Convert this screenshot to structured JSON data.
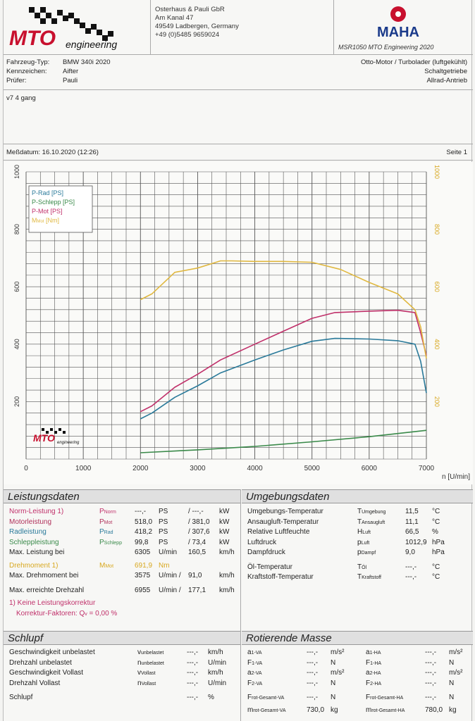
{
  "header": {
    "logo_text": "MTO",
    "logo_sub": "engineering",
    "address": [
      "Osterhaus & Pauli GbR",
      "Am Kanal 47",
      "49549 Ladbergen, Germany",
      "+49 (0)5485 9659024"
    ],
    "maha_text": "MAHA",
    "msr": "MSR1050   MTO Engineering 2020"
  },
  "vehicle": {
    "type_label": "Fahrzeug-Typ:",
    "type": "BMW 340i 2020",
    "plate_label": "Kennzeichen:",
    "plate": "Aifter",
    "tester_label": "Prüfer:",
    "tester": "Pauli",
    "engine": "Otto-Motor / Turbolader (luftgekühlt)",
    "gearbox": "Schaltgetriebe",
    "drive": "Allrad-Antrieb"
  },
  "note": "v7 4 gang",
  "measure": {
    "date": "Meßdatum: 16.10.2020 (12:26)",
    "page": "Seite 1"
  },
  "chart_data": {
    "type": "line",
    "xlabel": "n [U/min]",
    "x_ticks": [
      "0",
      "1000",
      "2000",
      "3000",
      "4000",
      "5000",
      "6000",
      "7000"
    ],
    "y_left_ticks": [
      "200",
      "400",
      "600",
      "800",
      "1000"
    ],
    "y_right_ticks": [
      "200",
      "400",
      "600",
      "800",
      "1000"
    ],
    "xlim": [
      0,
      7000
    ],
    "ylim": [
      0,
      1000
    ],
    "grid": true,
    "legend_position": "top-left",
    "legend": [
      {
        "label": "P-Rad [PS]",
        "color": "#2a7a9a"
      },
      {
        "label": "P-Schlepp [PS]",
        "color": "#3a8a4a"
      },
      {
        "label": "P-Mot [PS]",
        "color": "#c0306a"
      },
      {
        "label": "M",
        "sub": "Mot",
        "unit": "[Nm]",
        "color": "#e0b840"
      }
    ],
    "series": [
      {
        "name": "P-Rad [PS]",
        "color": "#2a7a9a",
        "x": [
          2000,
          2200,
          2600,
          3000,
          3400,
          4000,
          4500,
          5000,
          5400,
          6000,
          6500,
          6800,
          6900,
          7000
        ],
        "y": [
          140,
          160,
          215,
          255,
          300,
          345,
          380,
          410,
          420,
          418,
          412,
          400,
          340,
          230
        ]
      },
      {
        "name": "P-Schlepp [PS]",
        "color": "#3a8a4a",
        "x": [
          2000,
          3000,
          4000,
          5000,
          6000,
          7000
        ],
        "y": [
          22,
          32,
          44,
          60,
          78,
          100
        ]
      },
      {
        "name": "P-Mot [PS]",
        "color": "#c0306a",
        "x": [
          2000,
          2200,
          2600,
          3000,
          3400,
          4000,
          4500,
          5000,
          5400,
          6000,
          6500,
          6800,
          6900,
          7000
        ],
        "y": [
          165,
          185,
          250,
          295,
          345,
          400,
          445,
          490,
          510,
          515,
          518,
          510,
          440,
          360
        ]
      },
      {
        "name": "M [Nm]",
        "color": "#e0b840",
        "x": [
          2000,
          2200,
          2600,
          3000,
          3400,
          3600,
          4000,
          4500,
          5000,
          5500,
          6000,
          6500,
          6800,
          6900,
          7000
        ],
        "y": [
          555,
          575,
          650,
          665,
          690,
          690,
          688,
          688,
          685,
          660,
          615,
          575,
          520,
          460,
          350
        ]
      }
    ]
  },
  "leistung": {
    "title": "Leistungsdaten",
    "rows": [
      {
        "label": "Norm-Leistung",
        "sup": "1)",
        "sym": "P",
        "sub": "Norm",
        "v1": "---,-",
        "u1": "PS",
        "v2": "---,-",
        "u2": "kW"
      },
      {
        "label": "Motorleistung",
        "sym": "P",
        "sub": "Mot",
        "v1": "518,0",
        "u1": "PS",
        "v2": "381,0",
        "u2": "kW"
      },
      {
        "label": "Radleistung",
        "sym": "P",
        "sub": "Rad",
        "v1": "418,2",
        "u1": "PS",
        "v2": "307,6",
        "u2": "kW"
      },
      {
        "label": "Schleppleistung",
        "sym": "P",
        "sub": "Schlepp",
        "v1": "99,8",
        "u1": "PS",
        "v2": "73,4",
        "u2": "kW"
      },
      {
        "label": "Max. Leistung bei",
        "v1": "6305",
        "u1": "U/min",
        "v2": "160,5",
        "u2": "km/h"
      }
    ],
    "drehmoment": {
      "label": "Drehmoment",
      "sup": "1)",
      "sym": "M",
      "sub": "Mot",
      "v": "691,9",
      "u": "Nm"
    },
    "max_dreh": {
      "label": "Max. Drehmoment bei",
      "v1": "3575",
      "u1": "U/min",
      "v2": "91,0",
      "u2": "km/h"
    },
    "max_drehzahl": {
      "label": "Max. erreichte Drehzahl",
      "v1": "6955",
      "u1": "U/min",
      "v2": "177,1",
      "u2": "km/h"
    },
    "korr1": "1) Keine Leistungskorrektur",
    "korr2": "Korrektur-Faktoren: Q",
    "korr2_sub": "v",
    "korr2_val": "=   0,00 %"
  },
  "umgebung": {
    "title": "Umgebungsdaten",
    "rows": [
      {
        "label": "Umgebungs-Temperatur",
        "sym": "T",
        "sub": "Umgebung",
        "v": "11,5",
        "u": "°C"
      },
      {
        "label": "Ansaugluft-Temperatur",
        "sym": "T",
        "sub": "Ansaugluft",
        "v": "11,1",
        "u": "°C"
      },
      {
        "label": "Relative Luftfeuchte",
        "sym": "H",
        "sub": "Luft",
        "v": "66,5",
        "u": "%"
      },
      {
        "label": "Luftdruck",
        "sym": "p",
        "sub": "Luft",
        "v": "1012,9",
        "u": "hPa"
      },
      {
        "label": "Dampfdruck",
        "sym": "p",
        "sub": "Dampf",
        "v": "9,0",
        "u": "hPa"
      },
      {
        "label": "Öl-Temperatur",
        "sym": "T",
        "sub": "Öl",
        "v": "---,-",
        "u": "°C"
      },
      {
        "label": "Kraftstoff-Temperatur",
        "sym": "T",
        "sub": "Kraftstoff",
        "v": "---,-",
        "u": "°C"
      }
    ]
  },
  "schlupf": {
    "title": "Schlupf",
    "rows": [
      {
        "label": "Geschwindigkeit unbelastet",
        "sym": "v",
        "sub": "unbelastet",
        "v": "---,-",
        "u": "km/h"
      },
      {
        "label": "Drehzahl unbelastet",
        "sym": "n",
        "sub": "unbelastet",
        "v": "---,-",
        "u": "U/min"
      },
      {
        "label": "Geschwindigkeit Vollast",
        "sym": "v",
        "sub": "Vollast",
        "v": "---,-",
        "u": "km/h"
      },
      {
        "label": "Drehzahl Vollast",
        "sym": "n",
        "sub": "Vollast",
        "v": "---,-",
        "u": "U/min"
      },
      {
        "label": "Schlupf",
        "sym": "",
        "sub": "",
        "v": "---,-",
        "u": "%"
      }
    ]
  },
  "masse": {
    "title": "Rotierende Masse",
    "rows": [
      {
        "s1": "a",
        "b1": "1-VA",
        "v1": "---,-",
        "u1": "m/s²",
        "s2": "a",
        "b2": "1-HA",
        "v2": "---,-",
        "u2": "m/s²"
      },
      {
        "s1": "F",
        "b1": "1-VA",
        "v1": "---,-",
        "u1": "N",
        "s2": "F",
        "b2": "1-HA",
        "v2": "---,-",
        "u2": "N"
      },
      {
        "s1": "a",
        "b1": "2-VA",
        "v1": "---,-",
        "u1": "m/s²",
        "s2": "a",
        "b2": "2-HA",
        "v2": "---,-",
        "u2": "m/s²"
      },
      {
        "s1": "F",
        "b1": "2-VA",
        "v1": "---,-",
        "u1": "N",
        "s2": "F",
        "b2": "2-HA",
        "v2": "---,-",
        "u2": "N"
      },
      {
        "s1": "F",
        "b1": "rot-Gesamt-VA",
        "v1": "---,-",
        "u1": "N",
        "s2": "F",
        "b2": "rot-Gesamt-HA",
        "v2": "---,-",
        "u2": "N"
      },
      {
        "s1": "m",
        "b1": "rot-Gesamt-VA",
        "v1": "730,0",
        "u1": "kg",
        "s2": "m",
        "b2": "rot-Gesamt-HA",
        "v2": "780,0",
        "u2": "kg"
      }
    ]
  }
}
